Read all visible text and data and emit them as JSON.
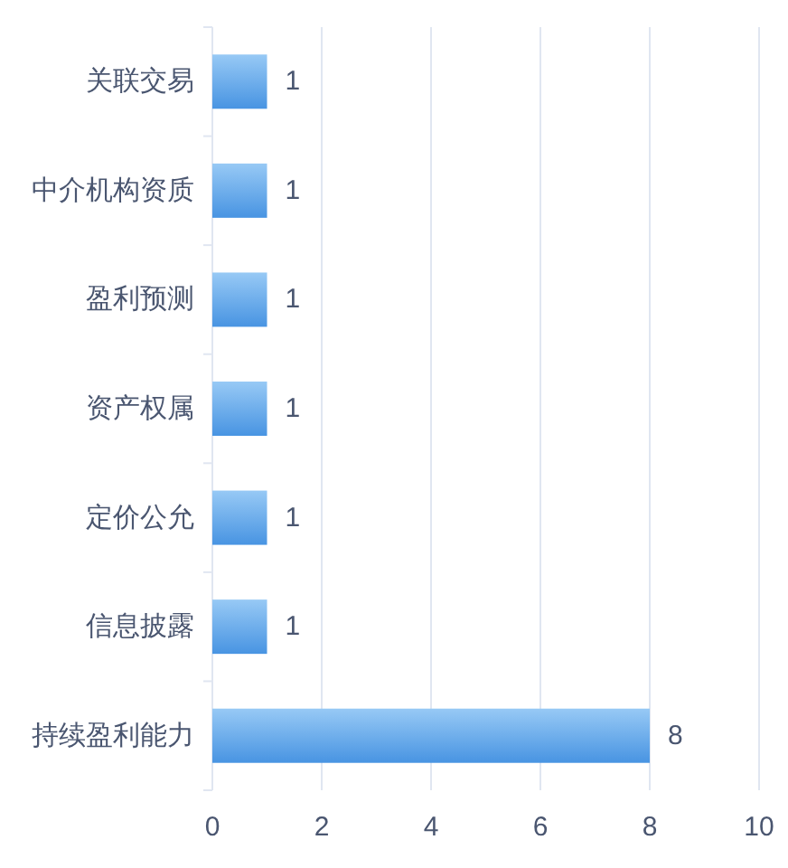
{
  "chart_data": {
    "type": "bar",
    "orientation": "horizontal",
    "categories": [
      "关联交易",
      "中介机构资质",
      "盈利预测",
      "资产权属",
      "定价公允",
      "信息披露",
      "持续盈利能力"
    ],
    "values": [
      1,
      1,
      1,
      1,
      1,
      1,
      8
    ],
    "color": "#6ab2f1",
    "xlim": [
      0,
      10
    ],
    "xticks": [
      0,
      2,
      4,
      6,
      8,
      10
    ],
    "grid": "x",
    "data_labels": true
  }
}
